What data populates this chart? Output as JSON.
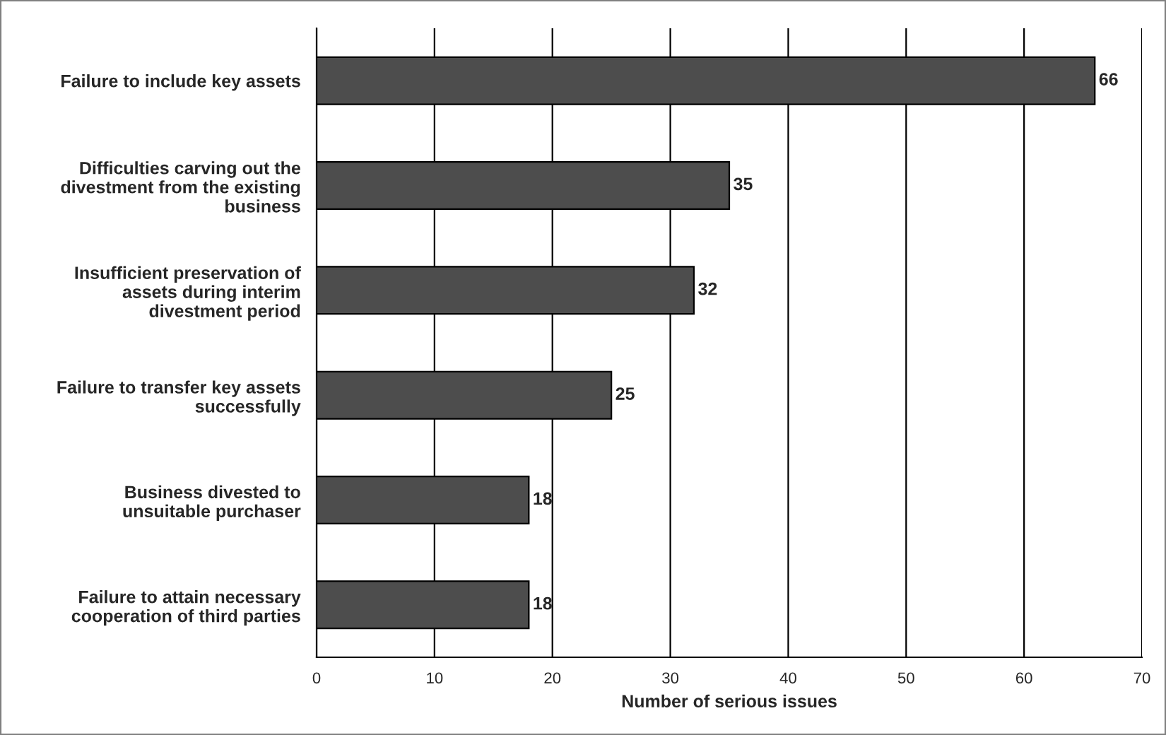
{
  "chart_data": {
    "type": "bar",
    "orientation": "horizontal",
    "xlabel": "Number of serious issues",
    "categories": [
      "Failure to include key assets",
      "Difficulties carving out the\ndivestment from the existing\nbusiness",
      "Insufficient preservation of\nassets during interim\ndivestment period",
      "Failure to transfer key assets\nsuccessfully",
      "Business divested to\nunsuitable purchaser",
      "Failure to attain necessary\ncooperation of third parties"
    ],
    "values": [
      66,
      35,
      32,
      25,
      18,
      18
    ],
    "color": "#4d4d4d",
    "xlim": [
      0,
      70
    ],
    "xticks": [
      0,
      10,
      20,
      30,
      40,
      50,
      60,
      70
    ],
    "grid": "x",
    "data_labels": true,
    "legend": false
  }
}
